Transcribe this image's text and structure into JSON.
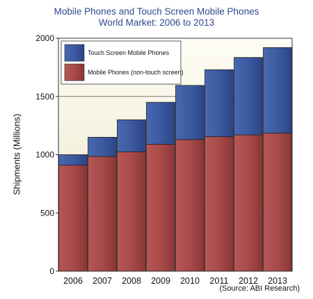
{
  "chart_data": {
    "type": "bar",
    "stacked": true,
    "title": "Mobile Phones and Touch Screen Mobile Phones",
    "subtitle": "World Market: 2006 to 2013",
    "xlabel": "",
    "ylabel": "Shipments (Millions)",
    "source": "(Source: ABI Research)",
    "ylim": [
      0,
      2000
    ],
    "yticks": [
      0,
      500,
      1000,
      1500,
      2000
    ],
    "categories": [
      "2006",
      "2007",
      "2008",
      "2009",
      "2010",
      "2011",
      "2012",
      "2013"
    ],
    "series": [
      {
        "name": "Mobile Phones (non-touch screen)",
        "values": [
          910,
          985,
          1025,
          1090,
          1130,
          1155,
          1170,
          1185
        ],
        "color": "#a64848"
      },
      {
        "name": "Touch Screen Mobile Phones",
        "values": [
          90,
          165,
          275,
          360,
          465,
          575,
          665,
          735
        ],
        "color": "#3c5aa0"
      }
    ],
    "legend_position": "top-left",
    "grid": true
  }
}
